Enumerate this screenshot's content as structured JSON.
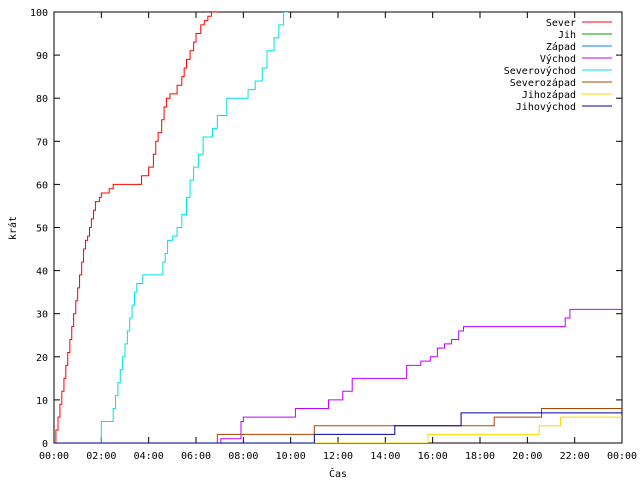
{
  "chart_data": {
    "type": "line",
    "xlabel": "Čas",
    "ylabel": "krát",
    "x_unit": "hours",
    "xlim": [
      0,
      24
    ],
    "ylim": [
      0,
      100
    ],
    "x_ticks": [
      0,
      2,
      4,
      6,
      8,
      10,
      12,
      14,
      16,
      18,
      20,
      22,
      24
    ],
    "x_tick_labels": [
      "00:00",
      "02:00",
      "04:00",
      "06:00",
      "08:00",
      "10:00",
      "12:00",
      "14:00",
      "16:00",
      "18:00",
      "20:00",
      "22:00",
      "00:00"
    ],
    "y_ticks": [
      0,
      10,
      20,
      30,
      40,
      50,
      60,
      70,
      80,
      90,
      100
    ],
    "grid": false,
    "legend_position": "top-right",
    "series": [
      {
        "name": "Sever",
        "color": "#ff0000",
        "step": true,
        "x": [
          0,
          0.08,
          0.17,
          0.25,
          0.33,
          0.42,
          0.5,
          0.58,
          0.67,
          0.75,
          0.83,
          0.92,
          1.0,
          1.08,
          1.17,
          1.25,
          1.33,
          1.42,
          1.5,
          1.58,
          1.67,
          1.75,
          1.83,
          1.92,
          2.0,
          2.17,
          2.33,
          2.5,
          2.58,
          2.67,
          2.8,
          3.2,
          3.7,
          3.8,
          4.0,
          4.2,
          4.3,
          4.4,
          4.55,
          4.65,
          4.75,
          4.9,
          5.1,
          5.2,
          5.4,
          5.5,
          5.6,
          5.75,
          5.9,
          6.0,
          6.2,
          6.35,
          6.5,
          6.65,
          6.8,
          6.95
        ],
        "y": [
          0,
          3,
          6,
          9,
          12,
          15,
          18,
          21,
          24,
          27,
          30,
          33,
          36,
          39,
          42,
          45,
          47,
          48,
          50,
          52,
          54,
          56,
          56,
          57,
          58,
          58,
          59,
          60,
          60,
          60,
          60,
          60,
          62,
          62,
          64,
          67,
          70,
          72,
          75,
          78,
          80,
          81,
          81,
          83,
          85,
          87,
          89,
          91,
          93,
          95,
          97,
          98,
          99,
          100,
          100,
          100
        ]
      },
      {
        "name": "Jih",
        "color": "#00a000",
        "step": true,
        "x": [],
        "y": []
      },
      {
        "name": "Západ",
        "color": "#0080ff",
        "step": true,
        "x": [],
        "y": []
      },
      {
        "name": "Východ",
        "color": "#c000ff",
        "step": true,
        "x": [
          0,
          7.05,
          7.9,
          8.0,
          10.2,
          11.6,
          12.2,
          12.6,
          14.9,
          15.5,
          15.9,
          16.2,
          16.5,
          16.8,
          17.1,
          17.3,
          21.6,
          21.8,
          24
        ],
        "y": [
          0,
          1,
          5,
          6,
          8,
          10,
          12,
          15,
          18,
          19,
          20,
          22,
          23,
          24,
          26,
          27,
          29,
          31,
          31
        ]
      },
      {
        "name": "Severovýchod",
        "color": "#00e0e0",
        "step": true,
        "x": [
          0,
          2.0,
          2.5,
          2.6,
          2.7,
          2.8,
          2.9,
          3.0,
          3.1,
          3.2,
          3.3,
          3.4,
          3.5,
          3.6,
          3.75,
          4.2,
          4.6,
          4.7,
          4.8,
          5.0,
          5.2,
          5.4,
          5.6,
          5.75,
          5.9,
          6.1,
          6.3,
          6.5,
          6.7,
          6.9,
          7.1,
          7.3,
          7.5,
          8.2,
          8.5,
          8.8,
          9.0,
          9.3,
          9.5,
          9.7,
          9.9
        ],
        "y": [
          0,
          5,
          8,
          11,
          14,
          17,
          20,
          23,
          26,
          29,
          32,
          35,
          37,
          37,
          39,
          39,
          42,
          44,
          47,
          48,
          50,
          53,
          57,
          61,
          64,
          67,
          71,
          71,
          73,
          76,
          76,
          80,
          80,
          82,
          84,
          87,
          91,
          94,
          97,
          100,
          100
        ]
      },
      {
        "name": "Severozápad",
        "color": "#b04000",
        "step": true,
        "x": [
          0,
          6.9,
          8.4,
          11.0,
          18.6,
          20.6,
          24
        ],
        "y": [
          0,
          2,
          2,
          4,
          6,
          8,
          8
        ]
      },
      {
        "name": "Jihozápad",
        "color": "#ffd700",
        "step": true,
        "x": [
          0,
          15.8,
          20.5,
          21.4,
          24
        ],
        "y": [
          0,
          2,
          4,
          6,
          6
        ]
      },
      {
        "name": "Jihovýchod",
        "color": "#0000a0",
        "step": true,
        "x": [
          0,
          11.0,
          14.4,
          17.2,
          24
        ],
        "y": [
          0,
          2,
          4,
          7,
          7
        ]
      }
    ]
  }
}
